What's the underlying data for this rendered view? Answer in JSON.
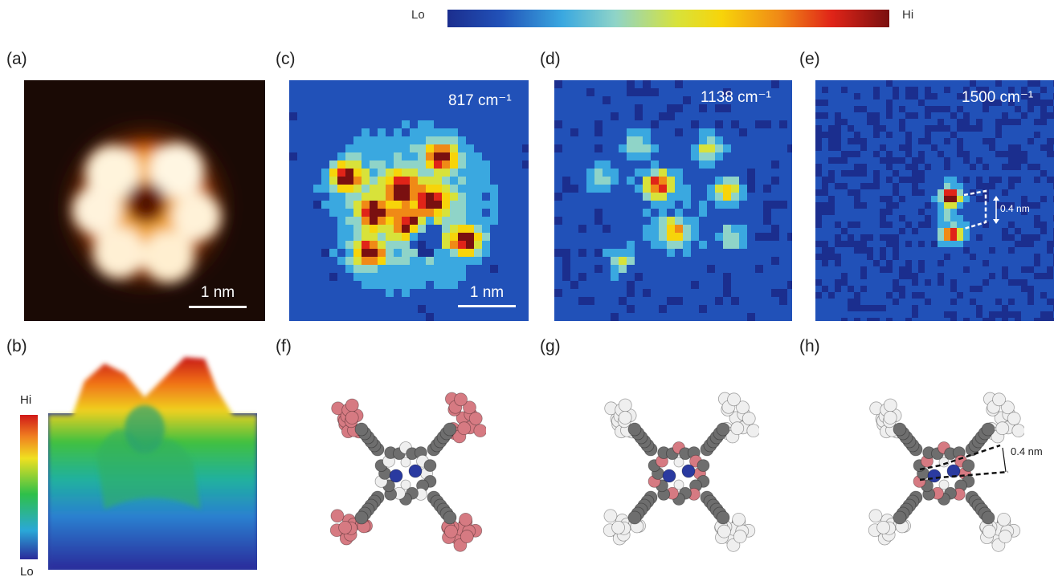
{
  "colorbar_top": {
    "lo": "Lo",
    "hi": "Hi",
    "stops": [
      "#1b2e8e",
      "#2151b8",
      "#3aa8e0",
      "#8fd4c8",
      "#d8e23a",
      "#f7d40a",
      "#f08a16",
      "#e02418",
      "#7a1010"
    ]
  },
  "panels": {
    "a": {
      "label": "(a)",
      "scalebar": "1 nm"
    },
    "b": {
      "label": "(b)",
      "hi": "Hi",
      "lo": "Lo"
    },
    "c": {
      "label": "(c)",
      "wavenumber": "817 cm⁻¹",
      "scalebar": "1 nm"
    },
    "d": {
      "label": "(d)",
      "wavenumber": "1138 cm⁻¹"
    },
    "e": {
      "label": "(e)",
      "wavenumber": "1500 cm⁻¹",
      "distance": "0.4 nm"
    },
    "f": {
      "label": "(f)"
    },
    "g": {
      "label": "(g)"
    },
    "h": {
      "label": "(h)",
      "distance": "0.4 nm"
    }
  },
  "colors": {
    "map_background": "#1f3a9c",
    "stm_background": "#1a0a05",
    "highlight_atom": "#d67a82",
    "carbon_atom": "#6e6e6e",
    "hydrogen_atom": "#efefef",
    "nitrogen_atom": "#2a3aa0"
  }
}
